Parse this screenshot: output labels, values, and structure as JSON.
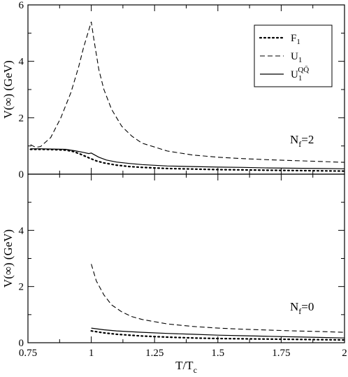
{
  "chart_data": [
    {
      "type": "line",
      "panel": "top",
      "ylabel": "V(∞) (GeV)",
      "xlim": [
        0.75,
        2.0
      ],
      "ylim": [
        0,
        6
      ],
      "yticks": [
        "0",
        "2",
        "4",
        "6"
      ],
      "annotation": {
        "main": "N",
        "sub": "f",
        "rest": "=2"
      },
      "series": [
        {
          "name": "F1",
          "style": "dotted",
          "x": [
            0.76,
            0.8,
            0.85,
            0.9,
            0.93,
            0.96,
            0.99,
            1.02,
            1.05,
            1.1,
            1.15,
            1.2,
            1.3,
            1.4,
            1.5,
            1.6,
            1.7,
            1.8,
            1.9,
            2.0
          ],
          "y": [
            0.88,
            0.88,
            0.87,
            0.85,
            0.8,
            0.7,
            0.58,
            0.47,
            0.4,
            0.32,
            0.27,
            0.24,
            0.2,
            0.18,
            0.16,
            0.15,
            0.14,
            0.13,
            0.12,
            0.11
          ]
        },
        {
          "name": "U1",
          "style": "dashed",
          "x": [
            0.76,
            0.78,
            0.8,
            0.84,
            0.88,
            0.92,
            0.95,
            0.97,
            0.99,
            1.0,
            1.01,
            1.03,
            1.05,
            1.08,
            1.12,
            1.16,
            1.2,
            1.3,
            1.4,
            1.5,
            1.6,
            1.7,
            1.8,
            1.9,
            2.0
          ],
          "y": [
            1.05,
            0.95,
            0.98,
            1.3,
            2.0,
            2.9,
            3.8,
            4.5,
            5.1,
            5.4,
            4.8,
            3.7,
            3.0,
            2.3,
            1.7,
            1.35,
            1.1,
            0.82,
            0.68,
            0.6,
            0.55,
            0.51,
            0.48,
            0.45,
            0.42
          ]
        },
        {
          "name": "U1QQ",
          "style": "solid",
          "x": [
            0.76,
            0.8,
            0.85,
            0.9,
            0.94,
            0.97,
            0.99,
            1.0,
            1.01,
            1.03,
            1.06,
            1.1,
            1.15,
            1.2,
            1.3,
            1.4,
            1.5,
            1.6,
            1.7,
            1.8,
            1.9,
            2.0
          ],
          "y": [
            0.9,
            0.9,
            0.89,
            0.88,
            0.82,
            0.77,
            0.73,
            0.75,
            0.7,
            0.6,
            0.5,
            0.43,
            0.38,
            0.34,
            0.29,
            0.27,
            0.25,
            0.24,
            0.22,
            0.21,
            0.2,
            0.19
          ]
        }
      ],
      "legend": {
        "placement": "top-right",
        "entries": [
          {
            "series": "F1",
            "main": "F",
            "sub": "1",
            "sup": ""
          },
          {
            "series": "U1",
            "main": "U",
            "sub": "1",
            "sup": ""
          },
          {
            "series": "U1QQ",
            "main": "U",
            "sub": "1",
            "sup": "QQ̄"
          }
        ]
      }
    },
    {
      "type": "line",
      "panel": "bottom",
      "ylabel": "V(∞) (GeV)",
      "xlabel": {
        "main": "T/T",
        "sub": "c"
      },
      "xlim": [
        0.75,
        2.0
      ],
      "ylim": [
        0,
        6
      ],
      "xticks": [
        "0.75",
        "1",
        "1.25",
        "1.5",
        "1.75",
        "2"
      ],
      "yticks": [
        "0",
        "2",
        "4"
      ],
      "annotation": {
        "main": "N",
        "sub": "f",
        "rest": "=0"
      },
      "series": [
        {
          "name": "F1",
          "style": "dotted",
          "x": [
            1.0,
            1.05,
            1.1,
            1.2,
            1.3,
            1.4,
            1.5,
            1.6,
            1.7,
            1.8,
            1.9,
            2.0
          ],
          "y": [
            0.42,
            0.35,
            0.3,
            0.24,
            0.2,
            0.17,
            0.15,
            0.14,
            0.13,
            0.12,
            0.11,
            0.1
          ]
        },
        {
          "name": "U1",
          "style": "dashed",
          "x": [
            1.0,
            1.02,
            1.05,
            1.08,
            1.12,
            1.16,
            1.2,
            1.3,
            1.4,
            1.5,
            1.6,
            1.7,
            1.8,
            1.9,
            2.0
          ],
          "y": [
            2.8,
            2.2,
            1.7,
            1.35,
            1.1,
            0.93,
            0.83,
            0.67,
            0.58,
            0.52,
            0.48,
            0.45,
            0.42,
            0.4,
            0.37
          ]
        },
        {
          "name": "U1QQ",
          "style": "solid",
          "x": [
            1.0,
            1.05,
            1.1,
            1.2,
            1.3,
            1.4,
            1.5,
            1.6,
            1.7,
            1.8,
            1.9,
            2.0
          ],
          "y": [
            0.52,
            0.46,
            0.42,
            0.37,
            0.33,
            0.3,
            0.27,
            0.25,
            0.23,
            0.21,
            0.19,
            0.17
          ]
        }
      ]
    }
  ]
}
